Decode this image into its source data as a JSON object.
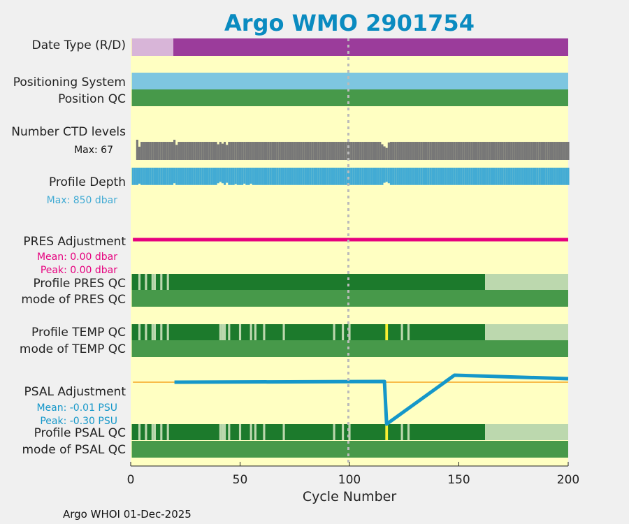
{
  "chart_data": {
    "type": "timeline",
    "title": "Argo WMO 2901754",
    "xlabel": "Cycle Number",
    "xlim": [
      0,
      200
    ],
    "x_ticks": [
      0,
      50,
      100,
      150,
      200
    ],
    "reference_line_x": 100,
    "footer": "Argo WHOI 01-Dec-2025",
    "rows": {
      "date_type": {
        "label": "Date Type (R/D)",
        "segments": [
          {
            "start": 0.5,
            "end": 19.5,
            "value": "R"
          },
          {
            "start": 19.5,
            "end": 200,
            "value": "D"
          }
        ]
      },
      "positioning_system": {
        "label": "Positioning System"
      },
      "position_qc": {
        "label": "Position QC"
      },
      "ctd_levels": {
        "label": "Number CTD levels",
        "max_text": "Max: 67",
        "max": 67,
        "typical": 60,
        "low_values": [
          {
            "cycle": 3,
            "value": 67
          },
          {
            "cycle": 4,
            "value": 44
          },
          {
            "cycle": 20,
            "value": 67
          },
          {
            "cycle": 21,
            "value": 50
          },
          {
            "cycle": 40,
            "value": 52
          },
          {
            "cycle": 42,
            "value": 54
          },
          {
            "cycle": 44,
            "value": 50
          },
          {
            "cycle": 115,
            "value": 52
          },
          {
            "cycle": 116,
            "value": 45
          },
          {
            "cycle": 117,
            "value": 40
          },
          {
            "cycle": 118,
            "value": 58
          }
        ]
      },
      "profile_depth": {
        "label": "Profile Depth",
        "max_text": "Max:  850 dbar",
        "max": 850,
        "typical": 780,
        "low_values": [
          {
            "cycle": 4,
            "value": 720
          },
          {
            "cycle": 20,
            "value": 700
          },
          {
            "cycle": 40,
            "value": 700
          },
          {
            "cycle": 41,
            "value": 640
          },
          {
            "cycle": 42,
            "value": 700
          },
          {
            "cycle": 44,
            "value": 680
          },
          {
            "cycle": 48,
            "value": 740
          },
          {
            "cycle": 52,
            "value": 720
          },
          {
            "cycle": 55,
            "value": 720
          },
          {
            "cycle": 116,
            "value": 680
          },
          {
            "cycle": 117,
            "value": 640
          },
          {
            "cycle": 118,
            "value": 700
          }
        ]
      },
      "pres_adjustment": {
        "label": "PRES Adjustment",
        "mean_text": "Mean: 0.00 dbar",
        "peak_text": "Peak: 0.00 dbar",
        "value": 0.0
      },
      "profile_pres_qc": {
        "label": "Profile PRES QC",
        "a_until": 162,
        "light_cycles": [
          4,
          7,
          10,
          11,
          14,
          17
        ]
      },
      "mode_pres_qc": {
        "label": "mode of PRES QC"
      },
      "profile_temp_qc": {
        "label": "Profile TEMP QC",
        "a_until": 162,
        "light_cycles": [
          4,
          7,
          10,
          11,
          14,
          17,
          41,
          42,
          43,
          45,
          50,
          55,
          57,
          61,
          70,
          93,
          97,
          100,
          117,
          124,
          127
        ],
        "flag_cycles": [
          117
        ]
      },
      "mode_temp_qc": {
        "label": "mode of TEMP QC"
      },
      "psal_adjustment": {
        "label": "PSAL Adjustment",
        "mean_text": "Mean: -0.01 PSU",
        "peak_text": "Peak: -0.30 PSU",
        "ylim": [
          -0.35,
          0.05
        ],
        "x": [
          20,
          116,
          117,
          148,
          200
        ],
        "y": [
          0.0,
          0.005,
          -0.3,
          0.05,
          0.025
        ]
      },
      "profile_psal_qc": {
        "label": "Profile PSAL QC",
        "a_until": 162,
        "light_cycles": [
          4,
          7,
          10,
          11,
          14,
          17,
          41,
          42,
          43,
          45,
          50,
          55,
          57,
          61,
          70,
          93,
          97,
          100,
          117,
          124,
          127
        ],
        "flag_cycles": [
          117
        ]
      },
      "mode_psal_qc": {
        "label": "mode of PSAL QC"
      }
    },
    "colors": {
      "title": "#0a8bc0",
      "background": "#ffffc2",
      "date_real": "#d8b5d8",
      "date_delayed": "#9b3c9b",
      "positioning": "#7ec6e0",
      "qc_mode": "#47994a",
      "qc_a": "#1c7a2c",
      "qc_light": "#bcd8ae",
      "qc_flag": "#f7f032",
      "ctd": "#777777",
      "depth": "#42abd4",
      "pres_line": "#e6007e",
      "psal_line": "#1597c9",
      "psal_zero": "#f5a623",
      "ref_line": "#bbbbbb"
    }
  }
}
